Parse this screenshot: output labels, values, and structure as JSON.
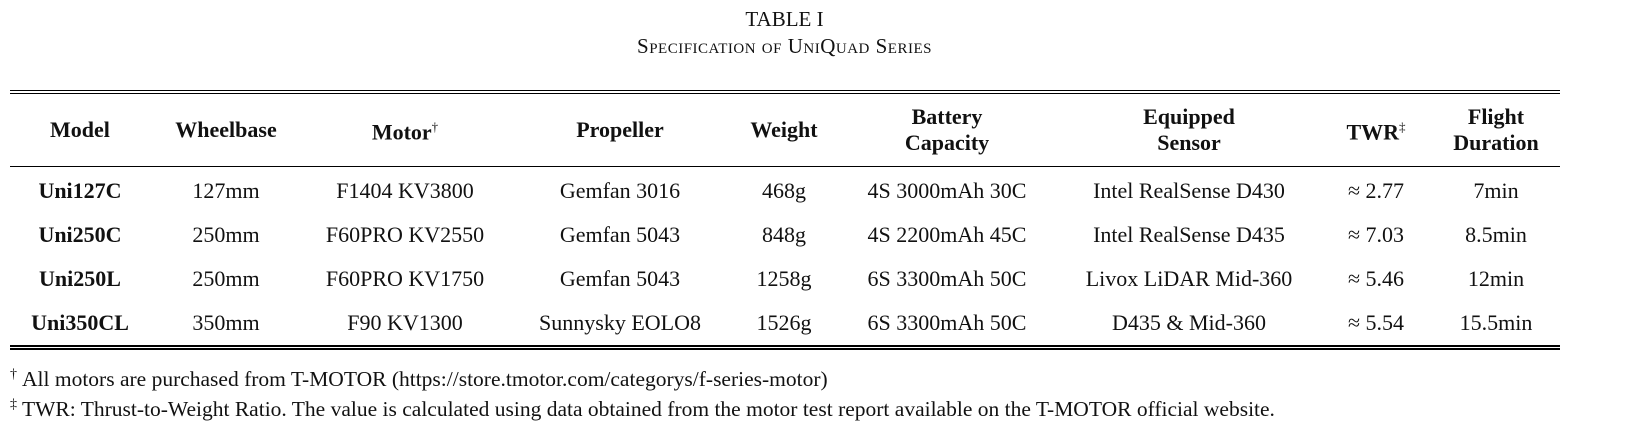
{
  "caption": {
    "label": "TABLE I",
    "title": "Specification of UniQuad Series"
  },
  "table": {
    "header": [
      {
        "text": "Model"
      },
      {
        "text": "Wheelbase"
      },
      {
        "text": "Motor",
        "mark": "†"
      },
      {
        "text": "Propeller"
      },
      {
        "text": "Weight"
      },
      {
        "text": "Battery Capacity"
      },
      {
        "text": "Equipped Sensor"
      },
      {
        "text": "TWR",
        "mark": "‡"
      },
      {
        "text": "Flight Duration"
      }
    ],
    "rows": [
      [
        "Uni127C",
        "127mm",
        "F1404 KV3800",
        "Gemfan 3016",
        "468g",
        "4S 3000mAh 30C",
        "Intel RealSense D430",
        "≈ 2.77",
        "7min"
      ],
      [
        "Uni250C",
        "250mm",
        "F60PRO KV2550",
        "Gemfan 5043",
        "848g",
        "4S 2200mAh 45C",
        "Intel RealSense D435",
        "≈ 7.03",
        "8.5min"
      ],
      [
        "Uni250L",
        "250mm",
        "F60PRO KV1750",
        "Gemfan 5043",
        "1258g",
        "6S 3300mAh 50C",
        "Livox LiDAR Mid-360",
        "≈ 5.46",
        "12min"
      ],
      [
        "Uni350CL",
        "350mm",
        "F90 KV1300",
        "Sunnysky EOLO8",
        "1526g",
        "6S 3300mAh 50C",
        "D435 & Mid-360",
        "≈ 5.54",
        "15.5min"
      ]
    ]
  },
  "footnotes": [
    {
      "mark": "†",
      "text": "All motors are purchased from T-MOTOR (https://store.tmotor.com/categorys/f-series-motor)"
    },
    {
      "mark": "‡",
      "text": "TWR: Thrust-to-Weight Ratio. The value is calculated using data obtained from the motor test report available on the T-MOTOR official website."
    }
  ]
}
